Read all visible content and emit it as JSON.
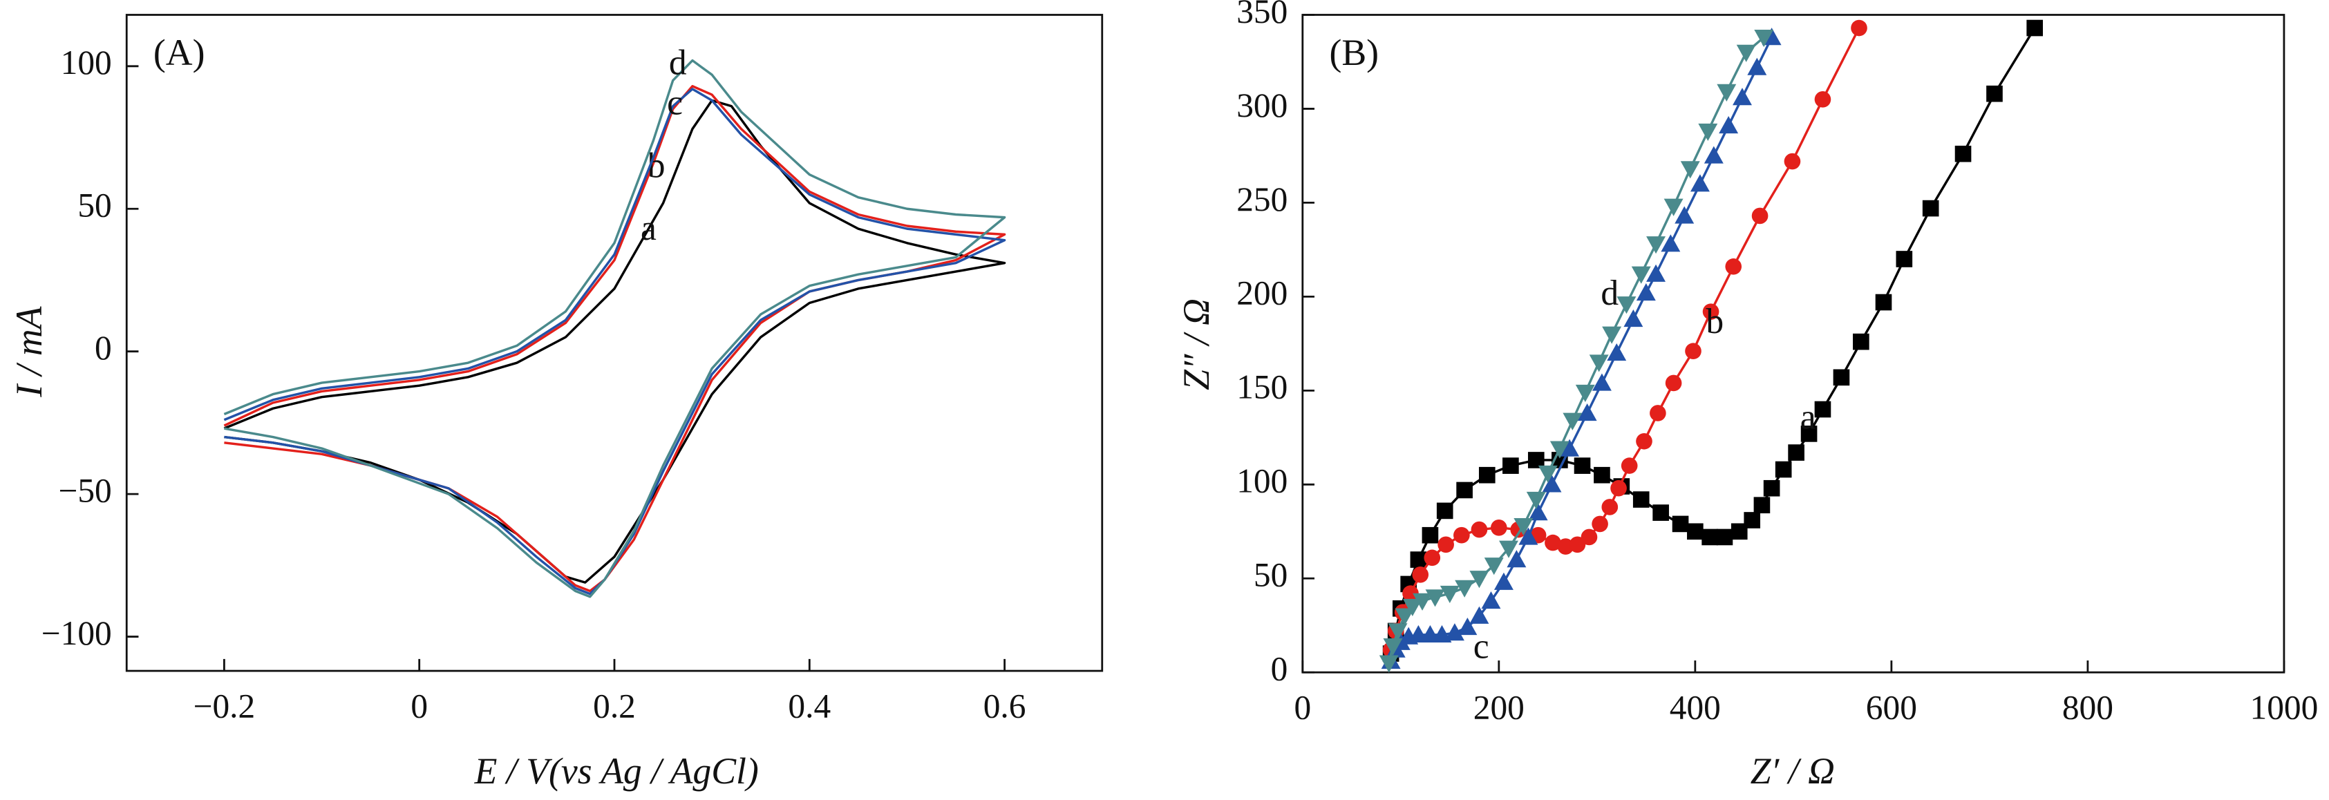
{
  "chart_data": [
    {
      "type": "line",
      "title": "(A)",
      "xlabel": "E  / V(vs Ag / AgCl)",
      "ylabel": "I / mA",
      "xlim": [
        -0.3,
        0.7
      ],
      "ylim": [
        -112,
        118
      ],
      "xticks": [
        {
          "value": -0.2,
          "label": "−0.2"
        },
        0,
        0.2,
        0.4,
        0.6
      ],
      "yticks": [
        {
          "value": -100,
          "label": "−100"
        },
        {
          "value": -50,
          "label": "−50"
        },
        0,
        50,
        100
      ],
      "series": [
        {
          "name": "a",
          "color": "#000000",
          "x": [
            -0.2,
            -0.15,
            -0.1,
            -0.05,
            0,
            0.05,
            0.1,
            0.15,
            0.2,
            0.25,
            0.28,
            0.3,
            0.32,
            0.35,
            0.4,
            0.45,
            0.5,
            0.55,
            0.6,
            0.55,
            0.5,
            0.45,
            0.4,
            0.35,
            0.3,
            0.25,
            0.2,
            0.17,
            0.15,
            0.1,
            0.05,
            0,
            -0.05,
            -0.1,
            -0.15,
            -0.2
          ],
          "values": [
            -27,
            -20,
            -16,
            -14,
            -12,
            -9,
            -4,
            5,
            22,
            52,
            78,
            88,
            86,
            72,
            52,
            43,
            38,
            34,
            31,
            28,
            25,
            22,
            17,
            5,
            -15,
            -45,
            -72,
            -81,
            -79,
            -64,
            -53,
            -45,
            -39,
            -35,
            -32,
            -30
          ]
        },
        {
          "name": "b",
          "color": "#e3201b",
          "x": [
            -0.2,
            -0.15,
            -0.1,
            -0.05,
            0,
            0.05,
            0.1,
            0.15,
            0.2,
            0.24,
            0.26,
            0.28,
            0.3,
            0.33,
            0.4,
            0.45,
            0.5,
            0.55,
            0.6,
            0.55,
            0.5,
            0.45,
            0.4,
            0.35,
            0.3,
            0.25,
            0.22,
            0.19,
            0.175,
            0.16,
            0.12,
            0.08,
            0.03,
            -0.05,
            -0.1,
            -0.15,
            -0.2
          ],
          "values": [
            -26,
            -18,
            -14,
            -12,
            -10,
            -7,
            -1,
            10,
            32,
            66,
            85,
            93,
            90,
            78,
            56,
            48,
            44,
            42,
            41,
            32,
            28,
            25,
            21,
            10,
            -10,
            -45,
            -66,
            -80,
            -84,
            -82,
            -70,
            -58,
            -48,
            -40,
            -36,
            -34,
            -32
          ]
        },
        {
          "name": "c",
          "color": "#2352a8",
          "x": [
            -0.2,
            -0.15,
            -0.1,
            -0.05,
            0,
            0.05,
            0.1,
            0.15,
            0.2,
            0.24,
            0.26,
            0.28,
            0.3,
            0.33,
            0.4,
            0.45,
            0.5,
            0.55,
            0.6,
            0.55,
            0.5,
            0.45,
            0.4,
            0.35,
            0.3,
            0.25,
            0.22,
            0.19,
            0.175,
            0.16,
            0.12,
            0.08,
            0.03,
            -0.05,
            -0.1,
            -0.15,
            -0.2
          ],
          "values": [
            -24,
            -17,
            -13,
            -11,
            -9,
            -6,
            0,
            11,
            34,
            68,
            86,
            92,
            88,
            76,
            55,
            47,
            43,
            41,
            39,
            31,
            28,
            25,
            21,
            11,
            -8,
            -42,
            -64,
            -80,
            -85,
            -83,
            -72,
            -60,
            -48,
            -40,
            -35,
            -32,
            -30
          ]
        },
        {
          "name": "d",
          "color": "#4a8a8c",
          "x": [
            -0.2,
            -0.15,
            -0.1,
            -0.05,
            0,
            0.05,
            0.1,
            0.15,
            0.2,
            0.24,
            0.26,
            0.28,
            0.3,
            0.33,
            0.4,
            0.45,
            0.5,
            0.55,
            0.6,
            0.55,
            0.5,
            0.45,
            0.4,
            0.35,
            0.3,
            0.25,
            0.22,
            0.19,
            0.175,
            0.16,
            0.12,
            0.08,
            0.03,
            -0.05,
            -0.1,
            -0.15,
            -0.2
          ],
          "values": [
            -22,
            -15,
            -11,
            -9,
            -7,
            -4,
            2,
            14,
            38,
            74,
            95,
            102,
            97,
            84,
            62,
            54,
            50,
            48,
            47,
            33,
            30,
            27,
            23,
            13,
            -6,
            -40,
            -63,
            -80,
            -86,
            -84,
            -74,
            -62,
            -50,
            -40,
            -34,
            -30,
            -27
          ]
        }
      ]
    },
    {
      "type": "line",
      "title": "(B)",
      "xlabel": "Z′ / Ω",
      "ylabel": "Z″ / Ω",
      "xlim": [
        0,
        1000
      ],
      "ylim": [
        0,
        350
      ],
      "xticks": [
        0,
        200,
        400,
        600,
        800,
        1000
      ],
      "yticks": [
        0,
        50,
        100,
        150,
        200,
        250,
        300,
        350
      ],
      "series": [
        {
          "name": "a",
          "color": "#000000",
          "marker": "square",
          "x": [
            90,
            95,
            100,
            108,
            118,
            130,
            145,
            165,
            188,
            212,
            238,
            262,
            285,
            305,
            325,
            345,
            365,
            385,
            400,
            415,
            430,
            445,
            458,
            468,
            478,
            490,
            503,
            516,
            530,
            549,
            569,
            592,
            613,
            640,
            673,
            705,
            746
          ],
          "values": [
            10,
            22,
            34,
            47,
            60,
            73,
            86,
            97,
            105,
            110,
            113,
            113,
            110,
            105,
            99,
            92,
            85,
            79,
            75,
            72,
            72,
            75,
            81,
            89,
            98,
            108,
            117,
            127,
            140,
            157,
            176,
            197,
            220,
            247,
            276,
            308,
            343
          ]
        },
        {
          "name": "b",
          "color": "#e3201b",
          "marker": "circle",
          "x": [
            90,
            95,
            102,
            110,
            120,
            132,
            146,
            162,
            180,
            200,
            220,
            240,
            255,
            268,
            280,
            292,
            303,
            313,
            322,
            333,
            348,
            362,
            378,
            398,
            416,
            439,
            466,
            499,
            530,
            567
          ],
          "values": [
            12,
            22,
            32,
            42,
            52,
            61,
            68,
            73,
            76,
            77,
            76,
            73,
            69,
            67,
            68,
            72,
            79,
            88,
            98,
            110,
            123,
            138,
            154,
            171,
            192,
            216,
            243,
            272,
            305,
            343
          ]
        },
        {
          "name": "c",
          "color": "#2352a8",
          "marker": "triangle-up",
          "x": [
            90,
            95,
            100,
            108,
            118,
            130,
            142,
            155,
            168,
            180,
            192,
            205,
            218,
            230,
            240,
            254,
            272,
            290,
            305,
            320,
            337,
            350,
            360,
            375,
            389,
            405,
            419,
            434,
            448,
            463,
            478
          ],
          "values": [
            6,
            12,
            16,
            19,
            20,
            20,
            20,
            21,
            24,
            30,
            38,
            48,
            60,
            72,
            85,
            100,
            119,
            138,
            154,
            170,
            188,
            202,
            212,
            228,
            243,
            260,
            275,
            291,
            306,
            322,
            338
          ]
        },
        {
          "name": "d",
          "color": "#4a8a8c",
          "marker": "triangle-down",
          "x": [
            88,
            92,
            97,
            104,
            112,
            122,
            135,
            150,
            165,
            180,
            195,
            210,
            225,
            238,
            250,
            262,
            275,
            288,
            302,
            315,
            330,
            345,
            360,
            378,
            395,
            413,
            432,
            452,
            470
          ],
          "values": [
            5,
            14,
            22,
            30,
            35,
            38,
            40,
            42,
            45,
            50,
            57,
            66,
            78,
            92,
            106,
            119,
            134,
            149,
            165,
            180,
            196,
            212,
            228,
            248,
            268,
            288,
            309,
            330,
            338
          ]
        }
      ]
    }
  ]
}
